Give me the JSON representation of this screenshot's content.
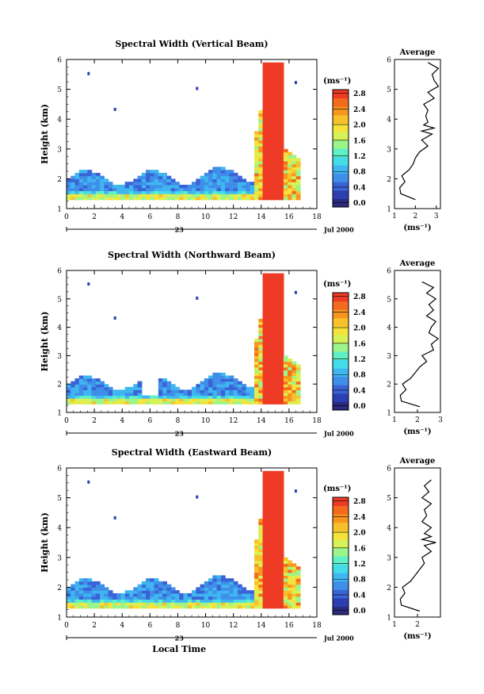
{
  "chart_data": [
    {
      "type": "heatmap",
      "title": "Spectral Width (Vertical Beam)",
      "ylabel": "Height (km)",
      "xlim": [
        0,
        18
      ],
      "ylim": [
        1,
        6
      ],
      "xticks": [
        "0",
        "2",
        "4",
        "6",
        "8",
        "10",
        "12",
        "14",
        "16",
        "18"
      ],
      "yticks": [
        "1",
        "2",
        "3",
        "4",
        "5",
        "6"
      ],
      "date_day": "23",
      "date_label": "Jul 2000",
      "colorbar": {
        "unit": "(ms⁻¹)",
        "ticks": [
          "2.8",
          "2.4",
          "2.0",
          "1.6",
          "1.2",
          "0.8",
          "0.4",
          "0.0"
        ],
        "range": [
          0,
          3.0
        ]
      },
      "average": {
        "title": "Average",
        "xlabel": "(ms⁻¹)",
        "xlim": [
          1,
          3.2
        ],
        "xticks": [
          "1",
          "2",
          "3"
        ],
        "height": [
          1.3,
          1.5,
          1.7,
          1.9,
          2.1,
          2.3,
          2.5,
          2.7,
          2.9,
          3.1,
          3.3,
          3.5,
          3.6,
          3.7,
          3.8,
          3.9,
          4.1,
          4.3,
          4.5,
          4.7,
          4.9,
          5.1,
          5.3,
          5.5,
          5.7,
          5.9
        ],
        "width": [
          2.0,
          1.3,
          1.25,
          1.5,
          1.35,
          1.7,
          1.9,
          2.0,
          2.2,
          2.6,
          2.3,
          2.8,
          2.3,
          2.9,
          2.4,
          2.6,
          2.5,
          2.6,
          2.4,
          2.9,
          2.6,
          3.1,
          2.9,
          2.8,
          3.1,
          2.6
        ]
      }
    },
    {
      "type": "heatmap",
      "title": "Spectral Width (Northward Beam)",
      "ylabel": "Height (km)",
      "xlim": [
        0,
        18
      ],
      "ylim": [
        1,
        6
      ],
      "xticks": [
        "0",
        "2",
        "4",
        "6",
        "8",
        "10",
        "12",
        "14",
        "16",
        "18"
      ],
      "yticks": [
        "1",
        "2",
        "3",
        "4",
        "5",
        "6"
      ],
      "date_day": "23",
      "date_label": "Jul 2000",
      "colorbar": {
        "unit": "(ms⁻¹)",
        "ticks": [
          "2.8",
          "2.4",
          "2.0",
          "1.6",
          "1.2",
          "0.8",
          "0.4",
          "0.0"
        ],
        "range": [
          0,
          3.0
        ]
      },
      "average": {
        "title": "Average",
        "xlabel": "(ms⁻¹)",
        "xlim": [
          1,
          3.0
        ],
        "xticks": [
          "1",
          "2",
          "3"
        ],
        "height": [
          1.2,
          1.4,
          1.6,
          1.8,
          2.0,
          2.2,
          2.4,
          2.6,
          2.8,
          3.0,
          3.2,
          3.4,
          3.6,
          3.8,
          4.0,
          4.2,
          4.4,
          4.6,
          4.8,
          5.0,
          5.2,
          5.4,
          5.6
        ],
        "width": [
          2.1,
          1.3,
          1.25,
          1.5,
          1.35,
          1.7,
          1.9,
          2.1,
          2.4,
          2.2,
          2.7,
          2.6,
          2.9,
          2.5,
          2.6,
          2.8,
          2.4,
          2.7,
          2.5,
          2.8,
          2.4,
          2.7,
          2.2
        ]
      }
    },
    {
      "type": "heatmap",
      "title": "Spectral Width (Eastward Beam)",
      "ylabel": "Height (km)",
      "xlabel": "Local Time",
      "xlim": [
        0,
        18
      ],
      "ylim": [
        1,
        6
      ],
      "xticks": [
        "0",
        "2",
        "4",
        "6",
        "8",
        "10",
        "12",
        "14",
        "16",
        "18"
      ],
      "yticks": [
        "1",
        "2",
        "3",
        "4",
        "5",
        "6"
      ],
      "date_day": "23",
      "date_label": "Jul 2000",
      "colorbar": {
        "unit": "(ms⁻¹)",
        "ticks": [
          "2.8",
          "2.4",
          "2.0",
          "1.6",
          "1.2",
          "0.8",
          "0.4",
          "0.0"
        ],
        "range": [
          0,
          3.0
        ]
      },
      "average": {
        "title": "Average",
        "xlabel": "(ms⁻¹)",
        "xlim": [
          1,
          3.0
        ],
        "xticks": [
          "1",
          "2"
        ],
        "height": [
          1.2,
          1.4,
          1.6,
          1.8,
          2.0,
          2.2,
          2.4,
          2.6,
          2.8,
          3.0,
          3.2,
          3.4,
          3.5,
          3.6,
          3.7,
          3.8,
          4.0,
          4.2,
          4.4,
          4.6,
          4.8,
          5.0,
          5.2,
          5.4,
          5.6
        ],
        "width": [
          2.1,
          1.3,
          1.25,
          1.45,
          1.35,
          1.7,
          1.9,
          2.1,
          2.3,
          2.2,
          2.6,
          2.3,
          2.8,
          2.2,
          2.6,
          2.3,
          2.6,
          2.2,
          2.4,
          2.3,
          2.6,
          2.2,
          2.5,
          2.3,
          2.6
        ]
      }
    }
  ]
}
